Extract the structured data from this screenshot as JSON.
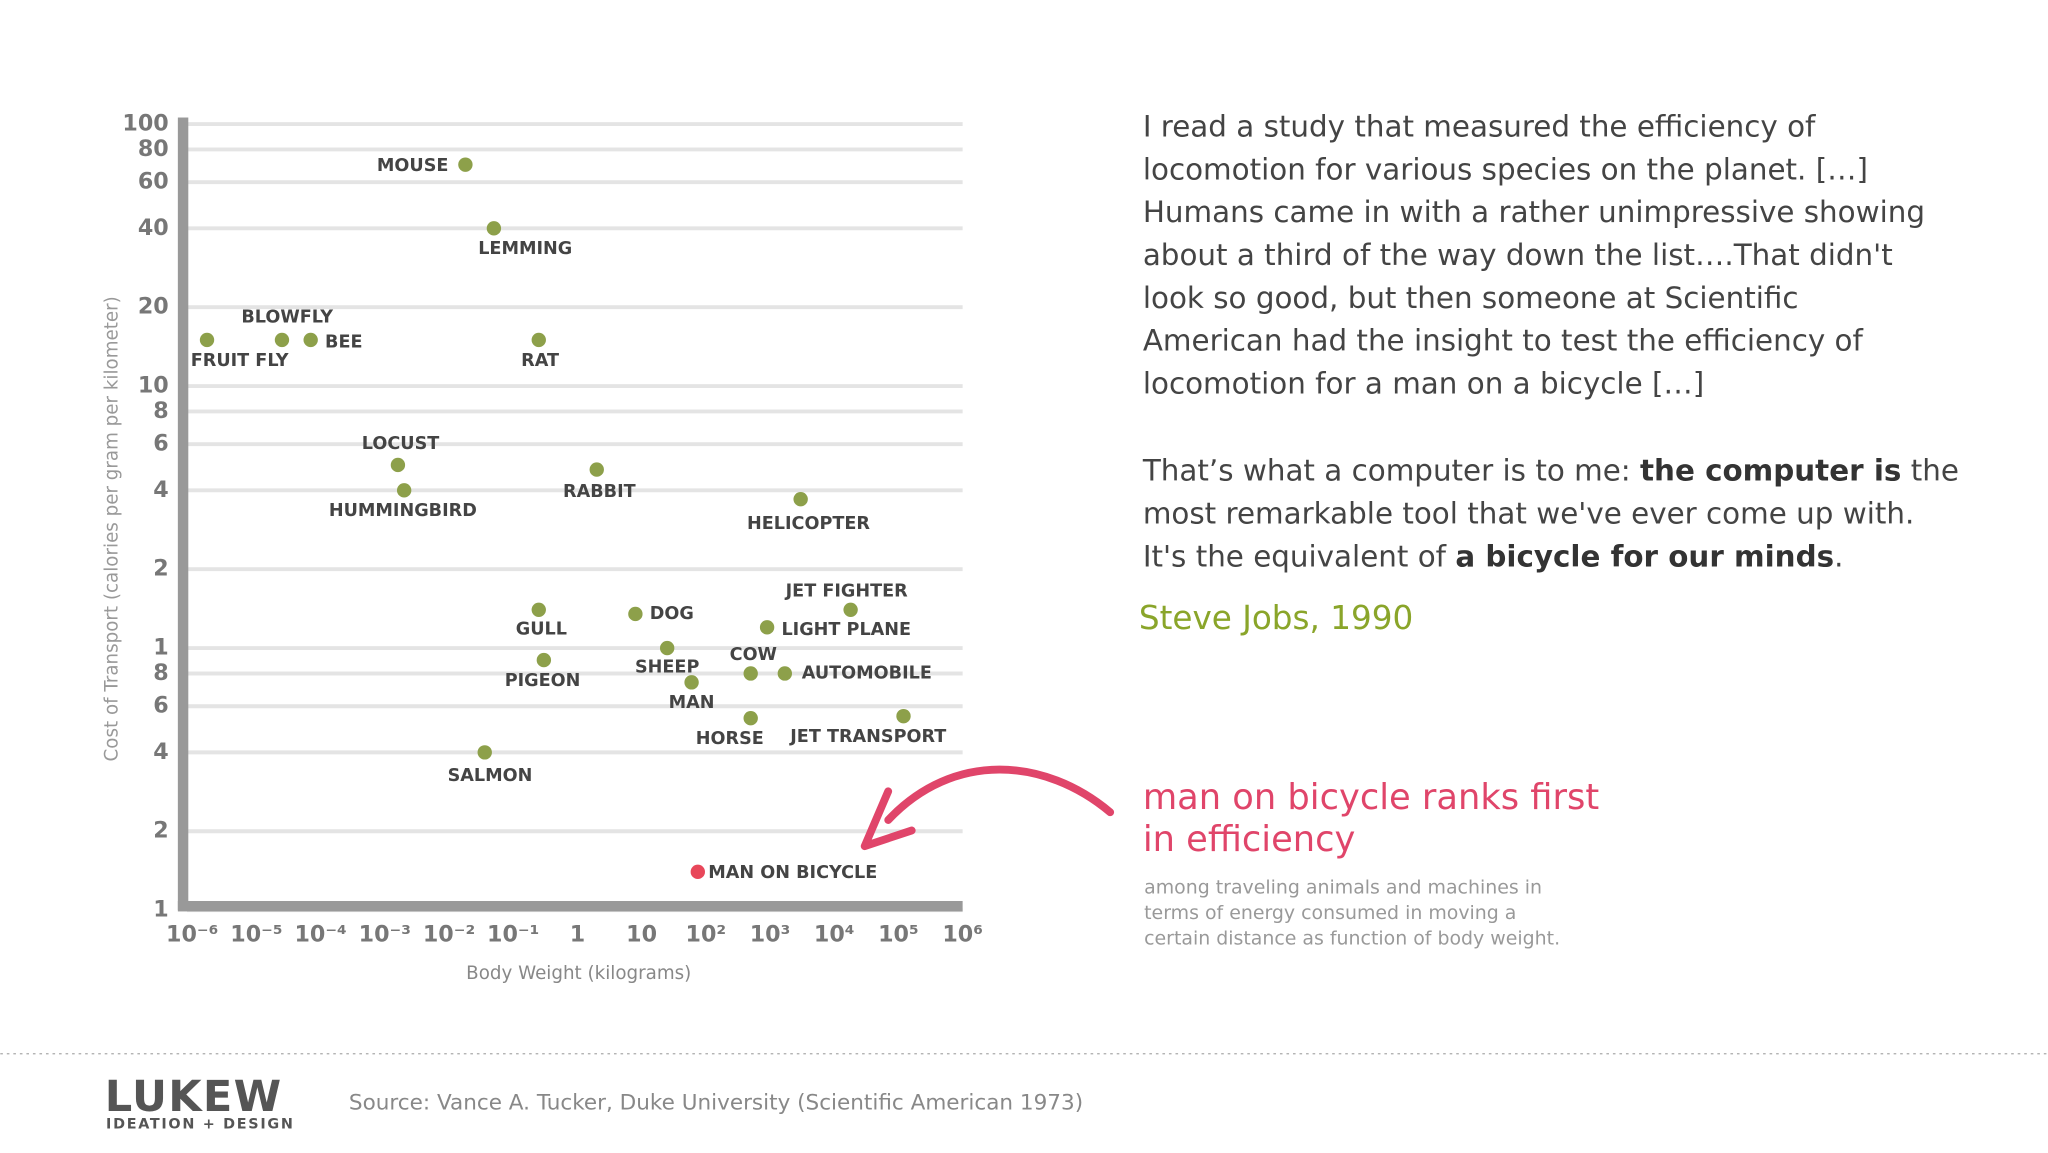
{
  "chart_data": {
    "type": "scatter",
    "y_label": "Cost of Transport (calories per gram per kilometer)",
    "x_label": "Body Weight (kilograms)",
    "log_x": true,
    "log_y": true,
    "grid": true,
    "xlim": [
      1e-06,
      1000000
    ],
    "ylim": [
      0.1,
      100
    ],
    "xticks": [
      {
        "value": 1e-06,
        "label": "10⁻⁶"
      },
      {
        "value": 1e-05,
        "label": "10⁻⁵"
      },
      {
        "value": 0.0001,
        "label": "10⁻⁴"
      },
      {
        "value": 0.001,
        "label": "10⁻³"
      },
      {
        "value": 0.01,
        "label": "10⁻²"
      },
      {
        "value": 0.1,
        "label": "10⁻¹"
      },
      1,
      10,
      {
        "value": 100,
        "label": "10²"
      },
      {
        "value": 1000,
        "label": "10³"
      },
      {
        "value": 10000,
        "label": "10⁴"
      },
      {
        "value": 100000,
        "label": "10⁵"
      },
      {
        "value": 1000000,
        "label": "10⁶"
      }
    ],
    "yticks": [
      100,
      80,
      60,
      40,
      20,
      10,
      8,
      6,
      4,
      2,
      1,
      {
        "value": 0.8,
        "label": "8"
      },
      {
        "value": 0.6,
        "label": "6"
      },
      {
        "value": 0.4,
        "label": "4"
      },
      {
        "value": 0.2,
        "label": "2"
      },
      {
        "value": 0.1,
        "label": "1"
      }
    ],
    "labels": [
      "MOUSE",
      "LEMMING",
      "BLOWFLY",
      "BEE",
      "FRUIT FLY",
      "RAT",
      "LOCUST",
      "HUMMINGBIRD",
      "RABBIT",
      "HELICOPTER",
      "GULL",
      "DOG",
      "JET FIGHTER",
      "LIGHT PLANE",
      "SHEEP",
      "PIGEON",
      "COW",
      "AUTOMOBILE",
      "MAN",
      "HORSE",
      "JET TRANSPORT",
      "SALMON",
      "MAN ON BICYCLE"
    ],
    "x": [
      0.018,
      0.05,
      2.5e-05,
      7e-05,
      1.7e-06,
      0.25,
      0.0016,
      0.002,
      2,
      3000,
      0.25,
      8,
      18000,
      900,
      25,
      0.3,
      500,
      1700,
      60,
      500,
      120000,
      0.036,
      75
    ],
    "values": [
      70,
      40,
      15,
      15,
      15,
      15,
      5,
      4,
      4.8,
      3.7,
      1.4,
      1.35,
      1.4,
      1.2,
      1,
      0.9,
      0.8,
      0.8,
      0.74,
      0.54,
      0.55,
      0.4,
      0.14
    ],
    "colors": [
      "#8da04a",
      "#8da04a",
      "#8da04a",
      "#8da04a",
      "#8da04a",
      "#8da04a",
      "#8da04a",
      "#8da04a",
      "#8da04a",
      "#8da04a",
      "#8da04a",
      "#8da04a",
      "#8da04a",
      "#8da04a",
      "#8da04a",
      "#8da04a",
      "#8da04a",
      "#8da04a",
      "#8da04a",
      "#8da04a",
      "#8da04a",
      "#8da04a",
      "#e8475a"
    ]
  },
  "quote": {
    "paragraph1": [
      "I read a study that measured the efficiency of",
      "locomotion for various species on the planet. […]",
      "Humans came in with a rather unimpressive showing",
      "about a third of the way down the list….That didn't",
      "look so good, but then someone at Scientific",
      "American had the insight to test the efficiency of",
      "locomotion for a man on a bicycle […]"
    ],
    "paragraph2": [
      [
        "That’s what a computer is to me: ",
        "the computer is",
        " the"
      ],
      [
        "most remarkable tool that we've ever come up with."
      ],
      [
        "It's the equivalent of ",
        "a bicycle for our minds",
        "."
      ]
    ],
    "attribution": "Steve Jobs, 1990"
  },
  "annotation": {
    "headline": [
      "man on bicycle ranks first",
      "in efficiency"
    ],
    "body": [
      "among traveling animals and machines in",
      "terms of energy consumed in moving a",
      "certain distance as function of body weight."
    ]
  },
  "footer": {
    "logo": "LUKEW",
    "tagline": "IDEATION + DESIGN",
    "source": "Source: Vance A. Tucker, Duke University (Scientific American 1973)"
  }
}
